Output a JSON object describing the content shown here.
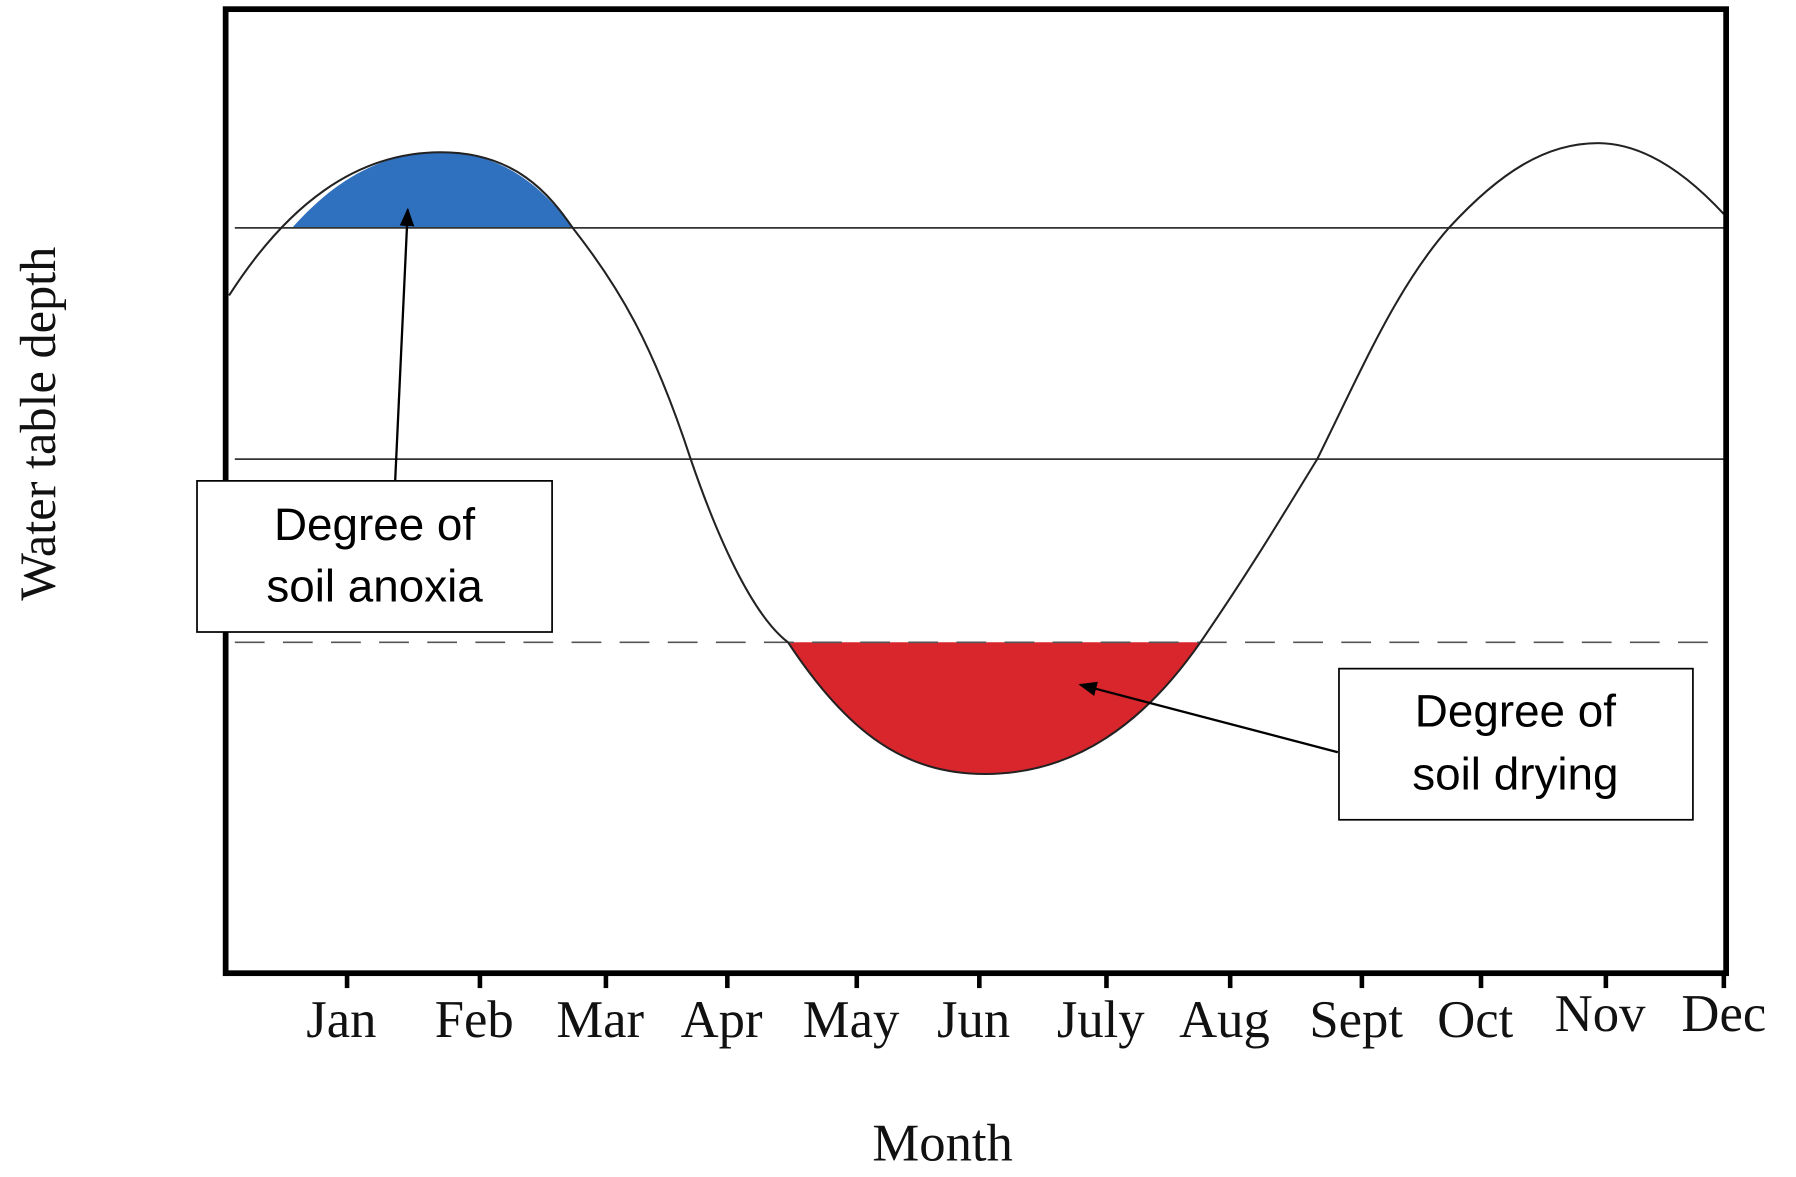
{
  "y_axis_label": "Water table depth",
  "x_axis_label": "Month",
  "months": [
    "Jan",
    "Feb",
    "Mar",
    "Apr",
    "May",
    "Jun",
    "July",
    "Aug",
    "Sept",
    "Oct",
    "Nov",
    "Dec"
  ],
  "annotations": [
    {
      "lines": [
        "Degree of",
        "soil anoxia"
      ]
    },
    {
      "lines": [
        "Degree of",
        "soil drying"
      ]
    }
  ]
}
